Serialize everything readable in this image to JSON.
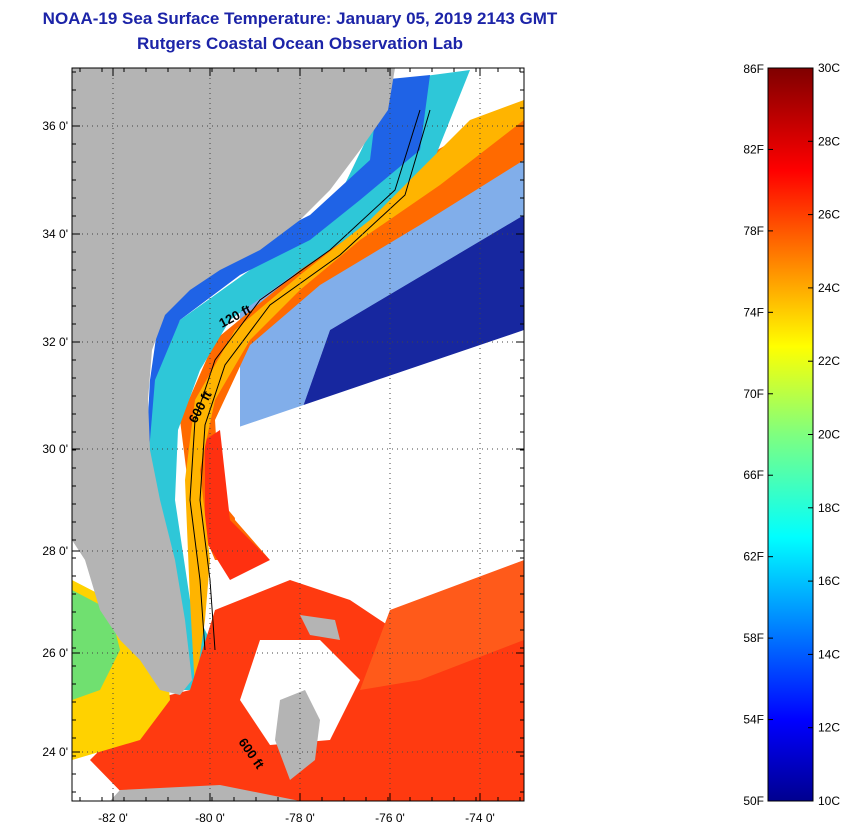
{
  "title": "NOAA-19 Sea Surface Temperature:  January 05, 2019 2143 GMT",
  "subtitle": "Rutgers Coastal Ocean Observation Lab",
  "map": {
    "lon_labels": [
      "-82 0'",
      "-80 0'",
      "-78 0'",
      "-76 0'",
      "-74 0'"
    ],
    "lat_labels": [
      "36 0'",
      "34 0'",
      "32 0'",
      "30 0'",
      "28 0'",
      "26 0'",
      "24 0'"
    ],
    "contour_labels": [
      "120 ft",
      "600 ft",
      "600 ft"
    ],
    "land_color": "#b4b4b4"
  },
  "colorbar": {
    "f_labels": [
      "86F",
      "82F",
      "78F",
      "74F",
      "70F",
      "66F",
      "62F",
      "58F",
      "54F",
      "50F"
    ],
    "c_labels": [
      "30C",
      "28C",
      "26C",
      "24C",
      "22C",
      "20C",
      "18C",
      "16C",
      "14C",
      "12C",
      "10C"
    ],
    "colormap": "jet"
  }
}
